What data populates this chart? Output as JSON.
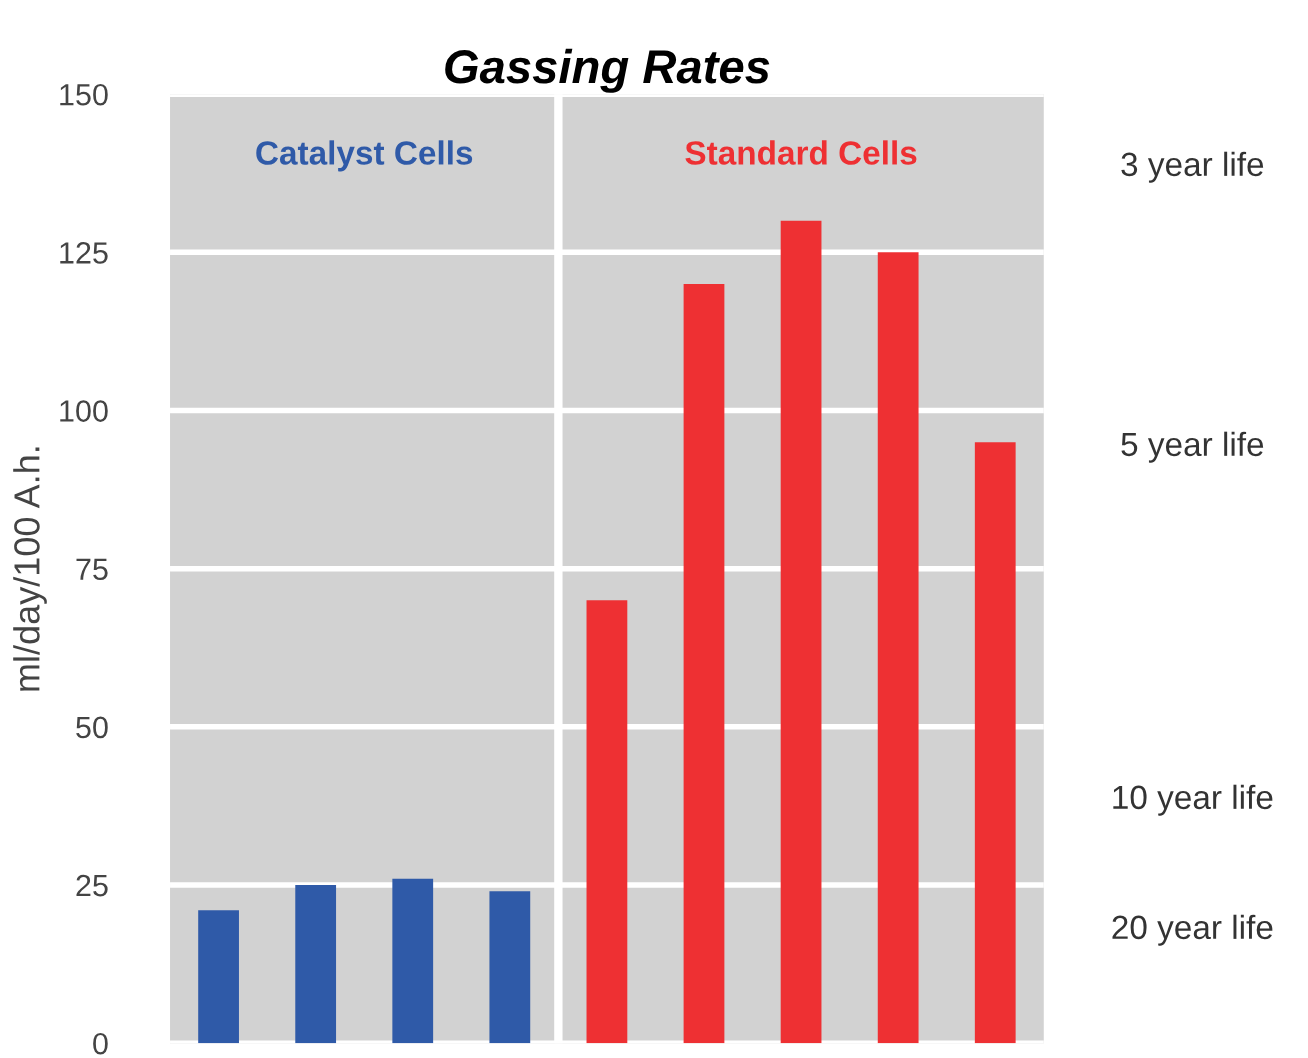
{
  "chart_data": {
    "type": "bar",
    "title": "Gassing Rates",
    "ylabel": "ml/day/100 A.h.",
    "categories": [
      null,
      null,
      null,
      null,
      null,
      null,
      null,
      null,
      null
    ],
    "series": [
      {
        "name": "Catalyst Cells",
        "color": "#2f5aa8",
        "values": [
          21,
          25,
          26,
          24,
          null,
          null,
          null,
          null,
          null
        ]
      },
      {
        "name": "Standard Cells",
        "color": "#ee3033",
        "values": [
          null,
          null,
          null,
          null,
          70,
          120,
          130,
          125,
          95
        ]
      }
    ],
    "ylim": [
      0,
      150
    ],
    "yticks": [
      0,
      25,
      50,
      75,
      100,
      125,
      150
    ],
    "grid": "y",
    "legend": false,
    "annotations": [
      "3 year life",
      "5 year life",
      "10 year life",
      "20 year life"
    ]
  }
}
